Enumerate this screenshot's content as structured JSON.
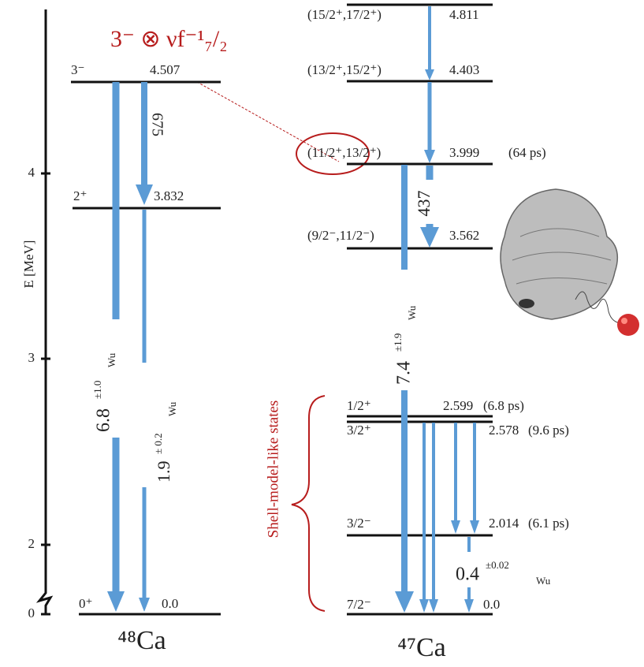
{
  "axis": {
    "label": "E [MeV]",
    "ticks": [
      "0",
      "2",
      "3",
      "4"
    ]
  },
  "configuration": "3⁻ ⊗ νf⁻¹₇/₂",
  "shell_model_label": "Shell-model-like states",
  "ca48": {
    "nucleus": "⁴⁸Ca",
    "levels": [
      {
        "spin": "3⁻",
        "energy": "4.507"
      },
      {
        "spin": "2⁺",
        "energy": "3.832"
      },
      {
        "spin": "0⁺",
        "energy": "0.0"
      }
    ],
    "transitions": [
      {
        "label": "675"
      },
      {
        "value": "6.8",
        "error": "±1.0",
        "unit": "Wu"
      },
      {
        "value": "1.9",
        "error": "± 0.2",
        "unit": "Wu"
      }
    ]
  },
  "ca47": {
    "nucleus": "⁴⁷Ca",
    "levels": [
      {
        "spin": "(15/2⁺,17/2⁺)",
        "energy": "4.811"
      },
      {
        "spin": "(13/2⁺,15/2⁺)",
        "energy": "4.403"
      },
      {
        "spin": "(11/2⁺,13/2⁺)",
        "energy": "3.999",
        "lifetime": "(64 ps)"
      },
      {
        "spin": "(9/2⁻,11/2⁻)",
        "energy": "3.562"
      },
      {
        "spin": "1/2⁺",
        "energy": "2.599",
        "lifetime": "(6.8 ps)"
      },
      {
        "spin": "3/2⁺",
        "energy": "2.578",
        "lifetime": "(9.6 ps)"
      },
      {
        "spin": "3/2⁻",
        "energy": "2.014",
        "lifetime": "(6.1 ps)"
      },
      {
        "spin": "7/2⁻",
        "energy": "0.0"
      }
    ],
    "transitions": [
      {
        "label": "437"
      },
      {
        "value": "7.4",
        "error": "±1.9",
        "unit": "Wu"
      },
      {
        "value": "0.4",
        "error": "±0.02",
        "unit": "Wu"
      }
    ]
  }
}
